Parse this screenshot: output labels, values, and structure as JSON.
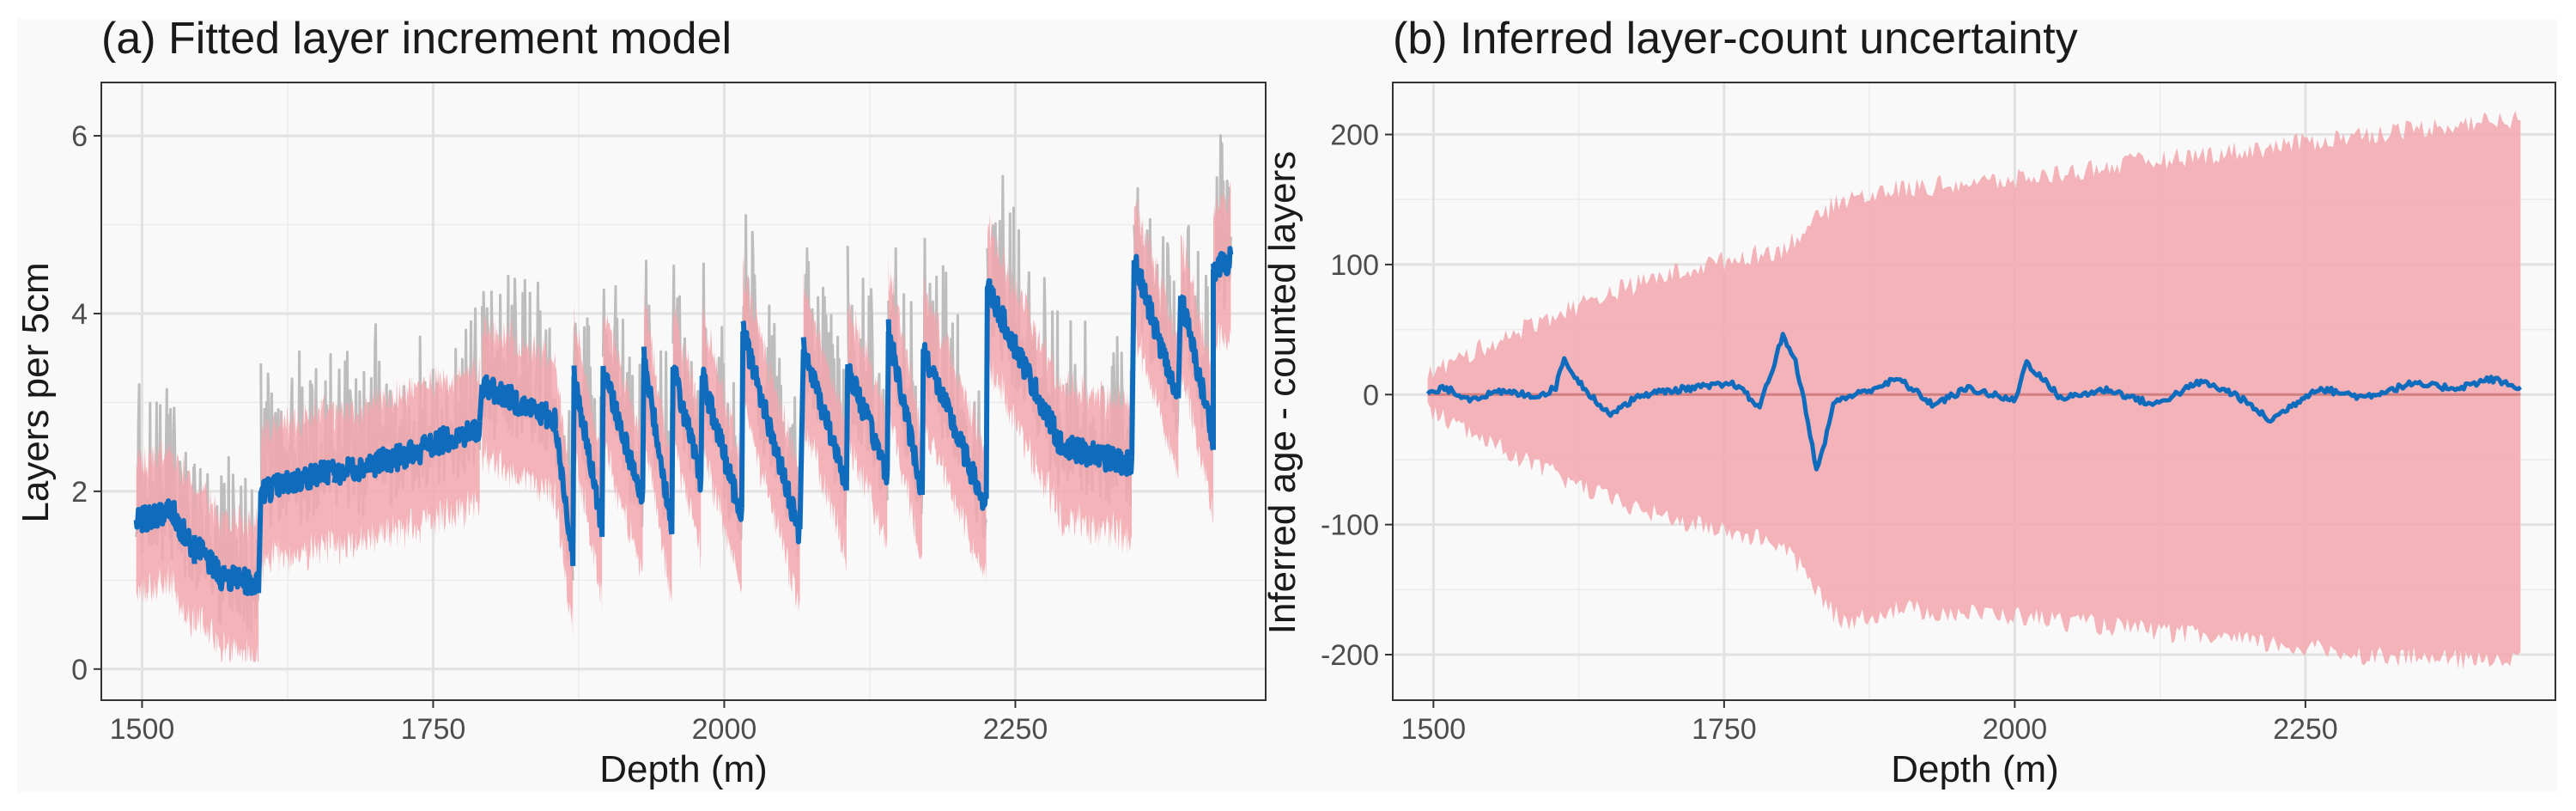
{
  "colors": {
    "observed": "#bdbdbd",
    "band": "#f2a7ad",
    "line": "#0f6cbd",
    "zero_line": "#d08080",
    "grid": "#ebebeb",
    "panel_bg": "#f9f9f9"
  },
  "chart_data": [
    {
      "type": "line",
      "title": "(a) Fitted layer increment model",
      "xlabel": "Depth (m)",
      "ylabel": "Layers per 5cm",
      "xlim": [
        1465,
        2465
      ],
      "ylim": [
        -0.35,
        6.6
      ],
      "xticks": [
        1500,
        1750,
        2000,
        2250
      ],
      "yticks": [
        0,
        2,
        4,
        6
      ],
      "grid": true,
      "legend": "none",
      "segments": [
        {
          "x": [
            1495,
            1525
          ],
          "y": [
            1.65,
            1.8
          ]
        },
        {
          "x": [
            1525,
            1545
          ],
          "y": [
            1.8,
            1.3
          ]
        },
        {
          "x": [
            1545,
            1570
          ],
          "y": [
            1.4,
            1.0
          ]
        },
        {
          "x": [
            1570,
            1600
          ],
          "y": [
            1.05,
            0.95
          ]
        },
        {
          "x": [
            1602,
            1665
          ],
          "y": [
            2.0,
            2.25
          ]
        },
        {
          "x": [
            1665,
            1740
          ],
          "y": [
            2.2,
            2.45
          ]
        },
        {
          "x": [
            1740,
            1790
          ],
          "y": [
            2.5,
            2.7
          ]
        },
        {
          "x": [
            1792,
            1855
          ],
          "y": [
            3.2,
            2.8
          ]
        },
        {
          "x": [
            1855,
            1870
          ],
          "y": [
            2.7,
            1.3
          ]
        },
        {
          "x": [
            1871,
            1895
          ],
          "y": [
            3.3,
            1.6
          ]
        },
        {
          "x": [
            1896,
            1930
          ],
          "y": [
            3.4,
            1.9
          ]
        },
        {
          "x": [
            1931,
            1955
          ],
          "y": [
            3.5,
            1.6
          ]
        },
        {
          "x": [
            1956,
            1980
          ],
          "y": [
            3.4,
            2.1
          ]
        },
        {
          "x": [
            1981,
            2015
          ],
          "y": [
            3.3,
            1.7
          ]
        },
        {
          "x": [
            2016,
            2065
          ],
          "y": [
            3.8,
            1.5
          ]
        },
        {
          "x": [
            2068,
            2105
          ],
          "y": [
            3.6,
            2.1
          ]
        },
        {
          "x": [
            2106,
            2140
          ],
          "y": [
            3.4,
            2.2
          ]
        },
        {
          "x": [
            2141,
            2170
          ],
          "y": [
            3.8,
            2.0
          ]
        },
        {
          "x": [
            2171,
            2225
          ],
          "y": [
            3.6,
            1.8
          ]
        },
        {
          "x": [
            2226,
            2290
          ],
          "y": [
            4.3,
            2.5
          ]
        },
        {
          "x": [
            2290,
            2350
          ],
          "y": [
            2.5,
            2.3
          ]
        },
        {
          "x": [
            2352,
            2390
          ],
          "y": [
            4.6,
            3.0
          ]
        },
        {
          "x": [
            2392,
            2420
          ],
          "y": [
            4.2,
            2.6
          ]
        },
        {
          "x": [
            2420,
            2435
          ],
          "y": [
            4.5,
            4.6
          ]
        }
      ]
    },
    {
      "type": "area",
      "title": "(b) Inferred layer-count uncertainty",
      "xlabel": "Depth (m)",
      "ylabel": "Inferred age - counted layers",
      "xlim": [
        1465,
        2465
      ],
      "ylim": [
        -235,
        240
      ],
      "xticks": [
        1500,
        1750,
        2000,
        2250
      ],
      "yticks": [
        -200,
        -100,
        0,
        100,
        200
      ],
      "grid": true,
      "legend": "none",
      "band_upper": {
        "x": [
          1495,
          1550,
          1600,
          1650,
          1700,
          1750,
          1800,
          1850,
          1900,
          1950,
          2000,
          2100,
          2200,
          2300,
          2400,
          2435
        ],
        "y": [
          15,
          40,
          60,
          78,
          92,
          103,
          112,
          150,
          158,
          162,
          165,
          178,
          188,
          200,
          210,
          212
        ]
      },
      "band_lower": {
        "x": [
          1495,
          1550,
          1600,
          1650,
          1700,
          1750,
          1800,
          1850,
          1900,
          1950,
          2000,
          2100,
          2200,
          2300,
          2400,
          2435
        ],
        "y": [
          -12,
          -38,
          -60,
          -80,
          -95,
          -105,
          -115,
          -175,
          -165,
          -168,
          -170,
          -180,
          -190,
          -200,
          -205,
          -200
        ]
      },
      "line": {
        "x": [
          1495,
          1510,
          1530,
          1560,
          1590,
          1605,
          1612,
          1625,
          1650,
          1680,
          1720,
          1760,
          1780,
          1790,
          1800,
          1810,
          1820,
          1830,
          1845,
          1870,
          1900,
          1930,
          1960,
          2000,
          2010,
          2040,
          2080,
          2120,
          2160,
          2190,
          2220,
          2260,
          2300,
          2340,
          2380,
          2410,
          2435
        ],
        "y": [
          0,
          5,
          -3,
          2,
          -1,
          5,
          28,
          10,
          -15,
          0,
          5,
          8,
          -10,
          15,
          45,
          30,
          -10,
          -60,
          -5,
          2,
          12,
          -8,
          5,
          -5,
          25,
          -3,
          4,
          -8,
          10,
          0,
          -20,
          5,
          -2,
          8,
          5,
          12,
          5
        ]
      }
    }
  ]
}
